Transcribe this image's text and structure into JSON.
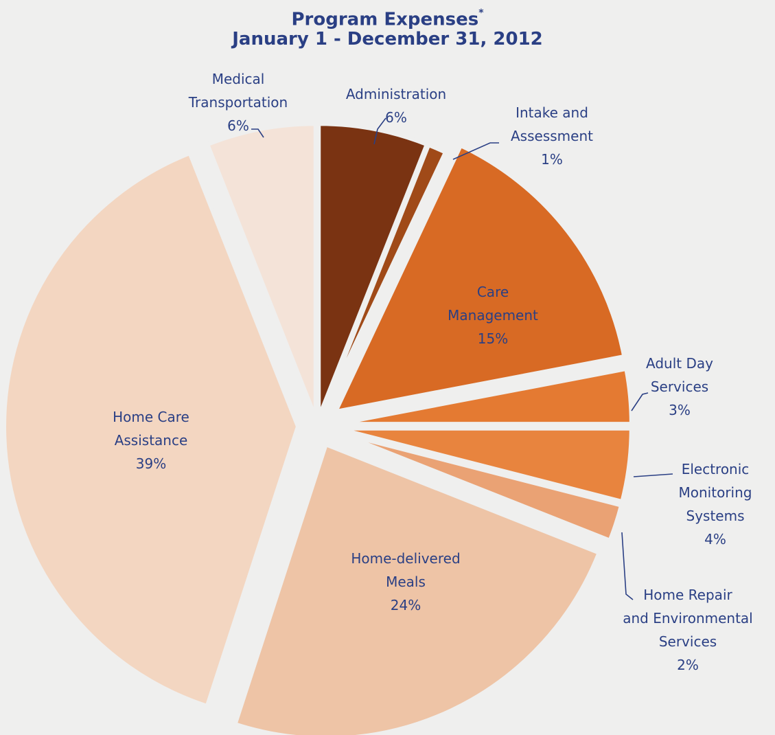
{
  "title": {
    "line1": "Program Expenses",
    "marker": "*",
    "line2": "January 1 - December 31, 2012"
  },
  "chart_data": {
    "type": "pie",
    "title": "Program Expenses* January 1 - December 31, 2012",
    "start_angle_deg": 0,
    "direction": "clockwise",
    "exploded": true,
    "slices": [
      {
        "key": "administration",
        "label": [
          "Administration",
          "6%"
        ],
        "value": 6,
        "color": "#7a3312"
      },
      {
        "key": "intake",
        "label": [
          "Intake and",
          "Assessment",
          "1%"
        ],
        "value": 1,
        "color": "#a04a18"
      },
      {
        "key": "care",
        "label": [
          "Care",
          "Management",
          "15%"
        ],
        "value": 15,
        "color": "#d86a24"
      },
      {
        "key": "adult_day",
        "label": [
          "Adult Day",
          "Services",
          "3%"
        ],
        "value": 3,
        "color": "#e47a32"
      },
      {
        "key": "electronic",
        "label": [
          "Electronic",
          "Monitoring",
          "Systems",
          "4%"
        ],
        "value": 4,
        "color": "#e8843e"
      },
      {
        "key": "home_repair",
        "label": [
          "Home Repair",
          "and Environmental",
          "Services",
          "2%"
        ],
        "value": 2,
        "color": "#eaa274"
      },
      {
        "key": "meals",
        "label": [
          "Home-delivered",
          "Meals",
          "24%"
        ],
        "value": 24,
        "color": "#eec4a6"
      },
      {
        "key": "home_care",
        "label": [
          "Home Care",
          "Assistance",
          "39%"
        ],
        "value": 39,
        "color": "#f3d6c1"
      },
      {
        "key": "medical",
        "label": [
          "Medical",
          "Transportation",
          "6%"
        ],
        "value": 6,
        "color": "#f4e3d8"
      }
    ]
  }
}
